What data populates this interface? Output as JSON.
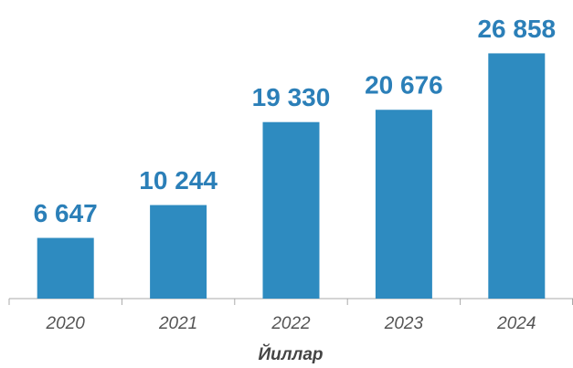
{
  "chart_data": {
    "type": "bar",
    "x_label": "Йиллар",
    "categories": [
      "2020",
      "2021",
      "2022",
      "2023",
      "2024"
    ],
    "values": [
      6647,
      10244,
      19330,
      20676,
      26858
    ],
    "value_labels": [
      "6 647",
      "10 244",
      "19 330",
      "20 676",
      "26 858"
    ],
    "color": "#2e8bc0",
    "ylim": [
      0,
      28000
    ]
  }
}
